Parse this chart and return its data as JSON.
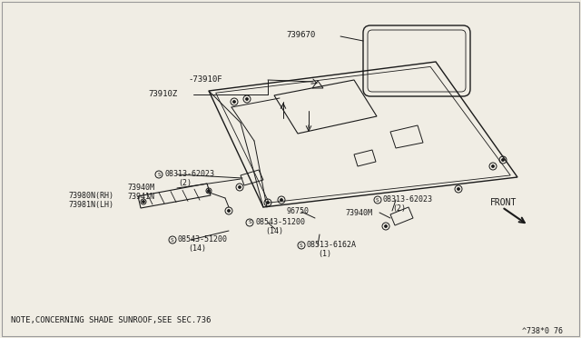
{
  "bg_color": "#f0ede4",
  "line_color": "#1a1a1a",
  "text_color": "#1a1a1a",
  "note": "NOTE,CONCERNING SHADE SUNROOF,SEE SEC.736",
  "ref_code": "^738*0 76",
  "front_label": "FRONT"
}
